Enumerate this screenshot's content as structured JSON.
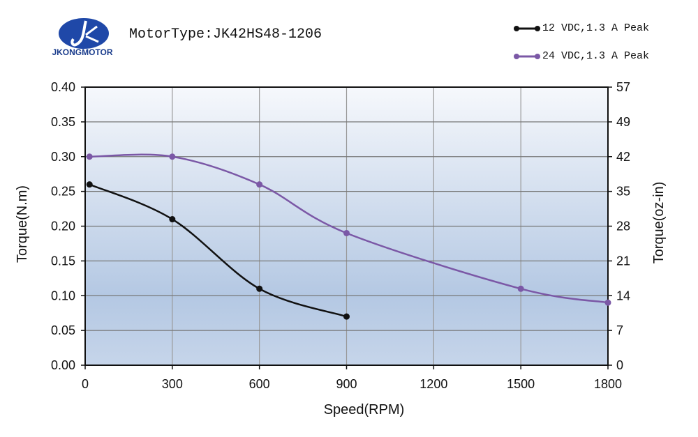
{
  "header": {
    "brand": "JKONGMOTOR",
    "title": "MotorType:JK42HS48-1206"
  },
  "chart_data": {
    "type": "line",
    "title": "MotorType:JK42HS48-1206",
    "xlabel": "Speed(RPM)",
    "ylabel": "Torque(N.m)",
    "y2label": "Torque(oz-in)",
    "xlim": [
      0,
      1800
    ],
    "ylim": [
      0,
      0.4
    ],
    "xticks": [
      "0",
      "300",
      "600",
      "900",
      "1200",
      "1500",
      "1800"
    ],
    "yticks": [
      "0.00",
      "0.05",
      "0.10",
      "0.15",
      "0.20",
      "0.25",
      "0.30",
      "0.35",
      "0.40"
    ],
    "y2ticks": [
      "0",
      "7",
      "14",
      "21",
      "28",
      "35",
      "42",
      "49",
      "57"
    ],
    "grid": true,
    "legend_position": "top-right",
    "series": [
      {
        "name": "12 VDC,1.3 A Peak",
        "color": "#111111",
        "x": [
          15,
          300,
          600,
          900
        ],
        "y": [
          0.26,
          0.21,
          0.11,
          0.07
        ]
      },
      {
        "name": "24 VDC,1.3 A Peak",
        "color": "#7b58a6",
        "x": [
          15,
          300,
          600,
          900,
          1500,
          1800
        ],
        "y": [
          0.3,
          0.3,
          0.26,
          0.19,
          0.11,
          0.09
        ]
      }
    ]
  }
}
